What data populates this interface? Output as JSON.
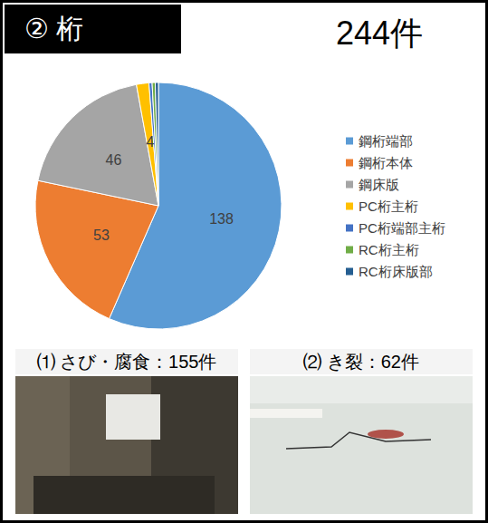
{
  "header": {
    "title": "② 桁",
    "total": "244件"
  },
  "chart_data": {
    "type": "pie",
    "categories": [
      "鋼桁端部",
      "鋼桁本体",
      "鋼床版",
      "PC桁主桁",
      "PC桁端部主桁",
      "RC桁主桁",
      "RC桁床版部"
    ],
    "values": [
      138,
      53,
      46,
      4,
      1,
      1,
      1
    ],
    "value_labels": [
      "138",
      "53",
      "46",
      "4",
      null,
      null,
      null
    ],
    "colors": [
      "#5b9bd5",
      "#ed7d31",
      "#a5a5a5",
      "#ffc000",
      "#4472c4",
      "#70ad47",
      "#255e91"
    ],
    "legend": "right"
  },
  "photos": [
    {
      "caption": "⑴ さび・腐食：155件"
    },
    {
      "caption": "⑵ き裂：62件"
    }
  ]
}
